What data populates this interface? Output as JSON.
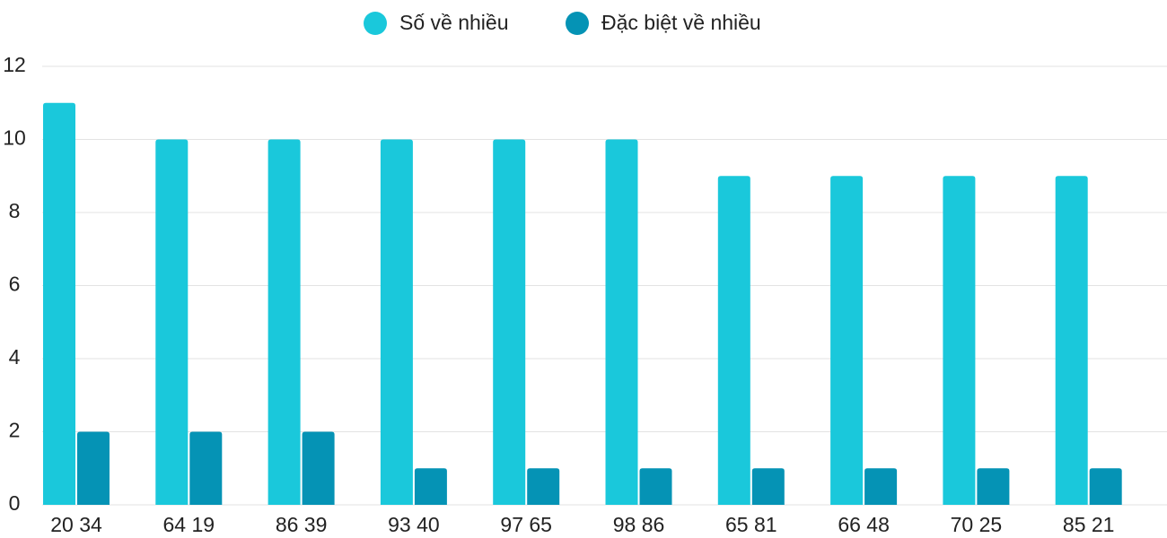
{
  "chart_data": {
    "type": "bar",
    "categories": [
      "20 34",
      "64 19",
      "86 39",
      "93 40",
      "97 65",
      "98 86",
      "65 81",
      "66 48",
      "70 25",
      "85 21"
    ],
    "series": [
      {
        "name": "Số về nhiều",
        "color": "#1ac8db",
        "values": [
          11,
          10,
          10,
          10,
          10,
          10,
          9,
          9,
          9,
          9
        ]
      },
      {
        "name": "Đặc biệt về nhiều",
        "color": "#0593b5",
        "values": [
          2,
          2,
          2,
          1,
          1,
          1,
          1,
          1,
          1,
          1
        ]
      }
    ],
    "ylim": [
      0,
      12
    ],
    "yticks": [
      0,
      2,
      4,
      6,
      8,
      10,
      12
    ],
    "grid": true,
    "legend": "top"
  }
}
